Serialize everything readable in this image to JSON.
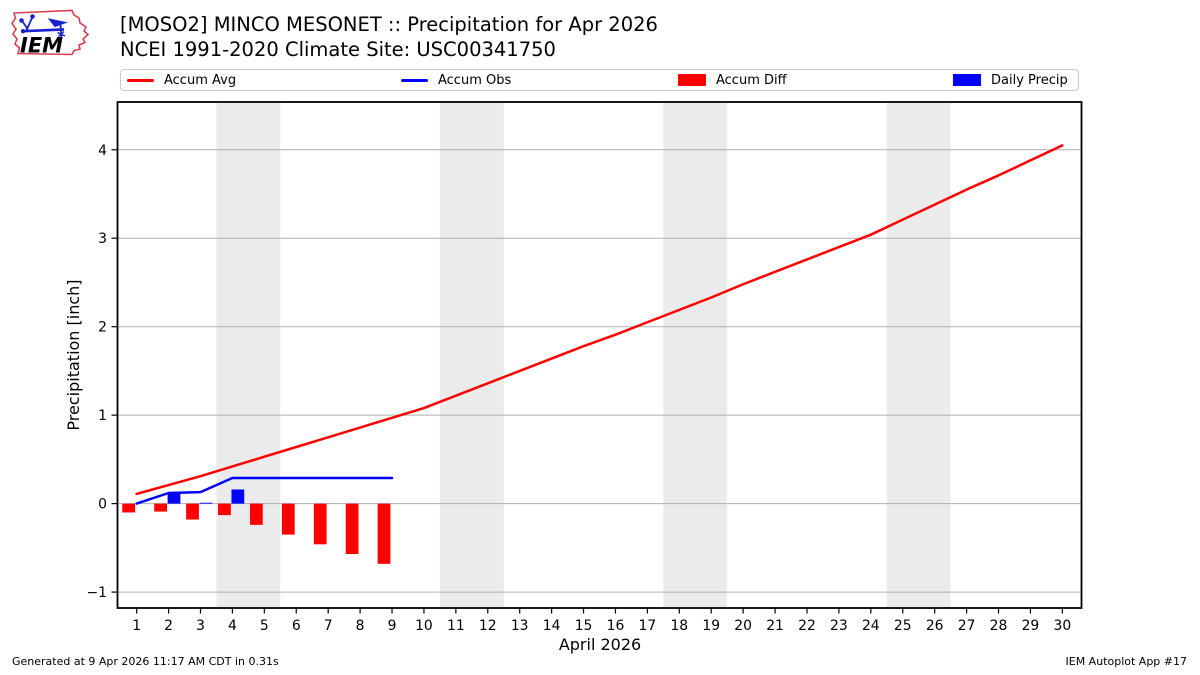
{
  "header": {
    "title_line1": "[MOSO2] MINCO MESONET :: Precipitation for Apr 2026",
    "title_line2": "NCEI 1991-2020 Climate Site: USC00341750",
    "logo_text": "IEM"
  },
  "legend": [
    {
      "label": "Accum Avg",
      "type": "line",
      "color": "#ff0000"
    },
    {
      "label": "Accum Obs",
      "type": "line",
      "color": "#0000ff"
    },
    {
      "label": "Accum Diff",
      "type": "patch",
      "color": "#ff0000"
    },
    {
      "label": "Daily Precip",
      "type": "patch",
      "color": "#0000ff"
    }
  ],
  "chart_data": {
    "type": "mixed",
    "title": "[MOSO2] MINCO MESONET :: Precipitation for Apr 2026 — NCEI 1991-2020 Climate Site: USC00341750",
    "xlabel": "April 2026",
    "ylabel": "Precipitation [inch]",
    "xlim": [
      0.4,
      30.6
    ],
    "ylim": [
      -1.18,
      4.54
    ],
    "xticks": [
      1,
      2,
      3,
      4,
      5,
      6,
      7,
      8,
      9,
      10,
      11,
      12,
      13,
      14,
      15,
      16,
      17,
      18,
      19,
      20,
      21,
      22,
      23,
      24,
      25,
      26,
      27,
      28,
      29,
      30
    ],
    "yticks": [
      -1,
      0,
      1,
      2,
      3,
      4
    ],
    "grid": "horizontal",
    "legend_position": "top",
    "weekend_bands": [
      [
        3.5,
        5.5
      ],
      [
        10.5,
        12.5
      ],
      [
        17.5,
        19.5
      ],
      [
        24.5,
        26.5
      ]
    ],
    "colors": {
      "grid": "#b0b0b0",
      "band": "#ebebeb",
      "spine": "#000000"
    },
    "series": [
      {
        "name": "Accum Avg",
        "type": "line",
        "color": "#ff0000",
        "x": [
          1,
          2,
          3,
          4,
          5,
          6,
          7,
          8,
          9,
          10,
          11,
          12,
          13,
          14,
          15,
          16,
          17,
          18,
          19,
          20,
          21,
          22,
          23,
          24,
          25,
          26,
          27,
          28,
          29,
          30
        ],
        "values": [
          0.11,
          0.21,
          0.31,
          0.42,
          0.53,
          0.64,
          0.75,
          0.86,
          0.97,
          1.08,
          1.22,
          1.36,
          1.5,
          1.64,
          1.78,
          1.91,
          2.05,
          2.19,
          2.33,
          2.48,
          2.62,
          2.76,
          2.9,
          3.04,
          3.21,
          3.38,
          3.55,
          3.71,
          3.88,
          4.05
        ]
      },
      {
        "name": "Accum Obs",
        "type": "line",
        "color": "#0000ff",
        "x": [
          1,
          2,
          3,
          4,
          5,
          6,
          7,
          8,
          9
        ],
        "values": [
          0.0,
          0.12,
          0.13,
          0.29,
          0.29,
          0.29,
          0.29,
          0.29,
          0.29
        ]
      },
      {
        "name": "Accum Diff",
        "type": "bar",
        "color": "#ff0000",
        "bar_offset": -0.45,
        "bar_width": 0.4,
        "x": [
          1,
          2,
          3,
          4,
          5,
          6,
          7,
          8,
          9
        ],
        "values": [
          -0.1,
          -0.09,
          -0.18,
          -0.13,
          -0.24,
          -0.35,
          -0.46,
          -0.57,
          -0.68
        ]
      },
      {
        "name": "Daily Precip",
        "type": "bar",
        "color": "#0000ff",
        "bar_offset": -0.03,
        "bar_width": 0.4,
        "x": [
          2,
          3,
          4
        ],
        "values": [
          0.12,
          0.01,
          0.16
        ]
      }
    ]
  },
  "footer": {
    "left": "Generated at 9 Apr 2026 11:17 AM CDT in 0.31s",
    "right": "IEM Autoplot App #17"
  }
}
